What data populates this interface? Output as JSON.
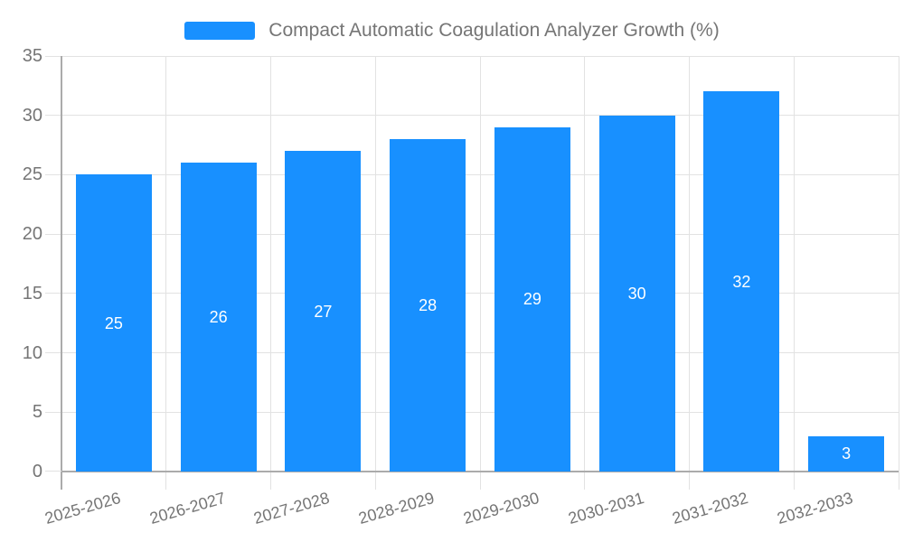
{
  "legend": {
    "label": "Compact Automatic Coagulation Analyzer Growth (%)",
    "swatch_color": "#1890ff"
  },
  "chart_data": {
    "type": "bar",
    "title": "Compact Automatic Coagulation Analyzer Growth (%)",
    "categories": [
      "2025-2026",
      "2026-2027",
      "2027-2028",
      "2028-2029",
      "2029-2030",
      "2030-2031",
      "2031-2032",
      "2032-2033"
    ],
    "values": [
      25,
      26,
      27,
      28,
      29,
      30,
      32,
      3
    ],
    "series_name": "Compact Automatic Coagulation Analyzer Growth (%)",
    "xlabel": "",
    "ylabel": "",
    "ylim": [
      0,
      35
    ],
    "yticks": [
      0,
      5,
      10,
      15,
      20,
      25,
      30,
      35
    ],
    "grid": true,
    "legend_position": "top-center",
    "bar_color": "#1890ff",
    "value_label_color": "#ffffff",
    "axis_text_color": "#757575",
    "gridline_color": "#e2e2e2",
    "axis_line_color": "#ababab",
    "x_label_rotation_deg": -16
  }
}
